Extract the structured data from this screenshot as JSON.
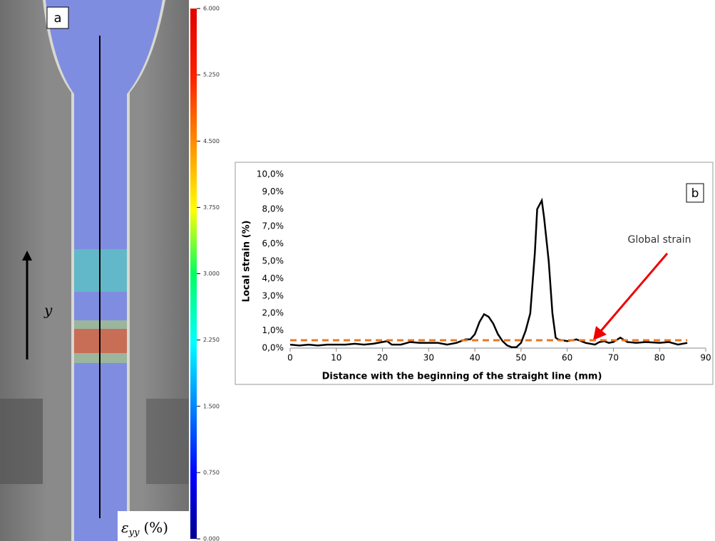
{
  "chart_data": [
    {
      "type": "colorbar",
      "panel_label": "a",
      "axis_symbol": "y",
      "label": {
        "symbol": "ε",
        "subscript": "yy",
        "unit": "(%)"
      },
      "zlim": [
        0,
        6
      ],
      "zticks": [
        {
          "value": 0,
          "label": "0.000"
        },
        {
          "value": 0.75,
          "label": "0.750"
        },
        {
          "value": 1.5,
          "label": "1.500"
        },
        {
          "value": 2.25,
          "label": "2.250"
        },
        {
          "value": 3,
          "label": "3.000"
        },
        {
          "value": 3.75,
          "label": "3.750"
        },
        {
          "value": 4.5,
          "label": "4.500"
        },
        {
          "value": 5.25,
          "label": "5.250"
        },
        {
          "value": 6,
          "label": "6.000"
        }
      ]
    },
    {
      "type": "line",
      "panel_label": "b",
      "xlabel": "Distance with the beginning of the straight line (mm)",
      "ylabel": "Local strain (%)",
      "annotation": "Global strain",
      "xlim": [
        0,
        90
      ],
      "xticks": [
        0,
        10,
        20,
        30,
        40,
        50,
        60,
        70,
        80,
        90
      ],
      "ylim": [
        0,
        10
      ],
      "yticks": [
        {
          "value": 0,
          "label": "0,0%"
        },
        {
          "value": 1,
          "label": "1,0%"
        },
        {
          "value": 2,
          "label": "2,0%"
        },
        {
          "value": 3,
          "label": "3,0%"
        },
        {
          "value": 4,
          "label": "4,0%"
        },
        {
          "value": 5,
          "label": "5,0%"
        },
        {
          "value": 6,
          "label": "6,0%"
        },
        {
          "value": 7,
          "label": "7,0%"
        },
        {
          "value": 8,
          "label": "8,0%"
        },
        {
          "value": 9,
          "label": "9,0%"
        },
        {
          "value": 10,
          "label": "10,0%"
        }
      ],
      "series": [
        {
          "color": "#000000",
          "dashed": false,
          "x": [
            0,
            2,
            4,
            6,
            8,
            10,
            12,
            14,
            16,
            18,
            20,
            21,
            22,
            24,
            26,
            28,
            30,
            32,
            34,
            36,
            38,
            39,
            40,
            41,
            42,
            43,
            44,
            45,
            46,
            47,
            48,
            49,
            50,
            51,
            52,
            53,
            53.5,
            54.5,
            55,
            56,
            56.8,
            57.5,
            58,
            60,
            62,
            63,
            64,
            66,
            67,
            68,
            69,
            70,
            71.5,
            73,
            75,
            77,
            80,
            82,
            84,
            86
          ],
          "values": [
            0.2,
            0.15,
            0.2,
            0.15,
            0.2,
            0.2,
            0.2,
            0.25,
            0.2,
            0.25,
            0.35,
            0.4,
            0.2,
            0.2,
            0.35,
            0.3,
            0.3,
            0.3,
            0.2,
            0.3,
            0.5,
            0.5,
            0.8,
            1.5,
            1.95,
            1.8,
            1.4,
            0.8,
            0.4,
            0.15,
            0.05,
            0.05,
            0.3,
            1.0,
            2.0,
            5.5,
            8.0,
            8.5,
            7.5,
            5.0,
            2.0,
            0.6,
            0.5,
            0.4,
            0.5,
            0.4,
            0.3,
            0.2,
            0.35,
            0.4,
            0.3,
            0.35,
            0.6,
            0.35,
            0.3,
            0.35,
            0.3,
            0.35,
            0.2,
            0.3
          ]
        },
        {
          "color": "#e87722",
          "dashed": true,
          "x": [
            0,
            86
          ],
          "values": [
            0.45,
            0.45
          ]
        }
      ]
    }
  ]
}
